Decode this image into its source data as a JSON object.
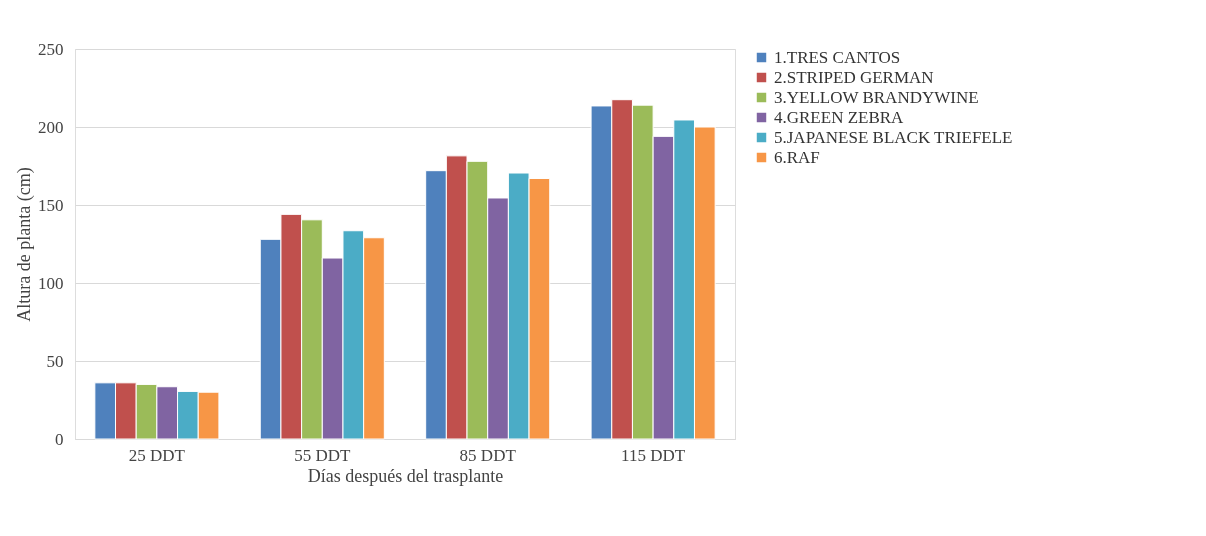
{
  "chart_data": {
    "type": "bar",
    "xlabel": "Días después del trasplante",
    "ylabel": "Altura de planta (cm)",
    "categories": [
      "25 DDT",
      "55 DDT",
      "85 DDT",
      "115 DDT"
    ],
    "series": [
      {
        "name": "1.TRES CANTOS",
        "color": "#4f81bd",
        "values": [
          36,
          128,
          172,
          213.5
        ]
      },
      {
        "name": "2.STRIPED GERMAN",
        "color": "#c0504d",
        "values": [
          36,
          144,
          181.5,
          217.5
        ]
      },
      {
        "name": "3.YELLOW BRANDYWINE",
        "color": "#9bbb59",
        "values": [
          35,
          140.5,
          178,
          214
        ]
      },
      {
        "name": "4.GREEN ZEBRA",
        "color": "#8064a2",
        "values": [
          33.5,
          116,
          154.5,
          194
        ]
      },
      {
        "name": "5.JAPANESE BLACK TRIEFELE",
        "color": "#4bacc6",
        "values": [
          30.5,
          133.5,
          170.5,
          204.5
        ]
      },
      {
        "name": "6.RAF",
        "color": "#f79646",
        "values": [
          30,
          129,
          167,
          200
        ]
      }
    ],
    "ylim": [
      0,
      250
    ],
    "yticks": [
      0,
      50,
      100,
      150,
      200,
      250
    ],
    "grid": "y",
    "legend": "right"
  }
}
